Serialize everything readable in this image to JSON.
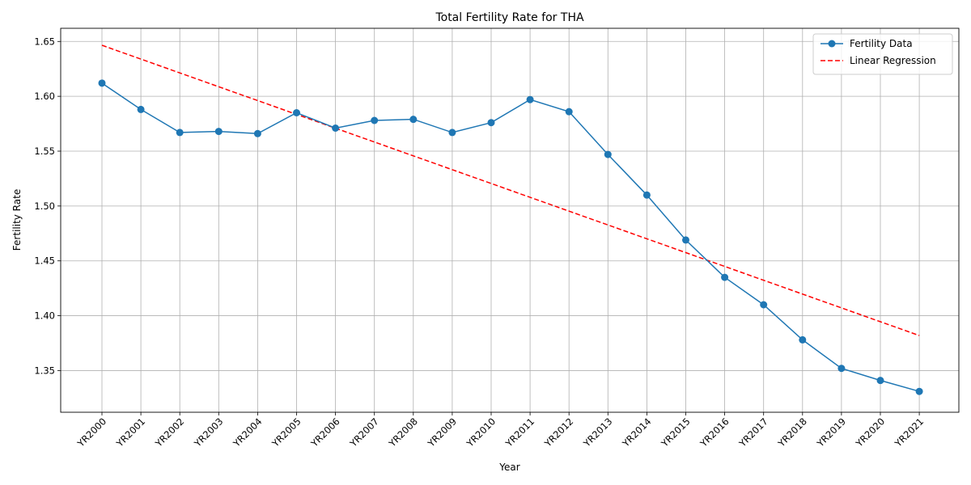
{
  "chart_data": {
    "type": "line",
    "title": "Total Fertility Rate for THA",
    "xlabel": "Year",
    "ylabel": "Fertility Rate",
    "categories": [
      "YR2000",
      "YR2001",
      "YR2002",
      "YR2003",
      "YR2004",
      "YR2005",
      "YR2006",
      "YR2007",
      "YR2008",
      "YR2009",
      "YR2010",
      "YR2011",
      "YR2012",
      "YR2013",
      "YR2014",
      "YR2015",
      "YR2016",
      "YR2017",
      "YR2018",
      "YR2019",
      "YR2020",
      "YR2021"
    ],
    "ylim": [
      1.312,
      1.662
    ],
    "yticks": [
      1.35,
      1.4,
      1.45,
      1.5,
      1.55,
      1.6,
      1.65
    ],
    "ytick_labels": [
      "1.35",
      "1.40",
      "1.45",
      "1.50",
      "1.55",
      "1.60",
      "1.65"
    ],
    "grid": true,
    "legend_position": "top-right",
    "series": [
      {
        "name": "Fertility Data",
        "style": "solid line with circle markers",
        "color": "#1f77b4",
        "values": [
          1.612,
          1.588,
          1.567,
          1.568,
          1.566,
          1.585,
          1.571,
          1.578,
          1.579,
          1.567,
          1.576,
          1.597,
          1.586,
          1.547,
          1.51,
          1.469,
          1.435,
          1.41,
          1.378,
          1.352,
          1.341,
          1.331
        ]
      },
      {
        "name": "Linear Regression",
        "style": "dashed line",
        "color": "#ff0000",
        "values": [
          1.6465,
          1.6339,
          1.6213,
          1.6087,
          1.5961,
          1.5835,
          1.5709,
          1.5583,
          1.5457,
          1.5331,
          1.5205,
          1.5079,
          1.4953,
          1.4827,
          1.4701,
          1.4575,
          1.4449,
          1.4323,
          1.4197,
          1.4071,
          1.3945,
          1.3819
        ]
      }
    ]
  }
}
